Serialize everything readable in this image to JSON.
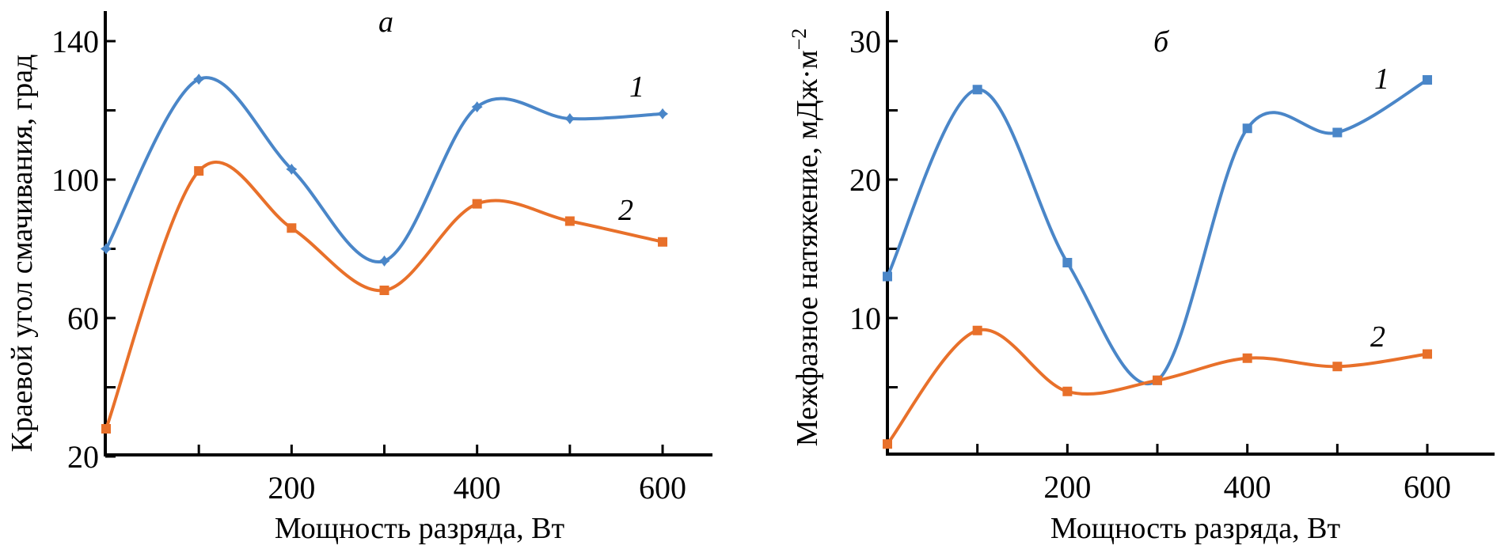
{
  "colors": {
    "series1": "#4a86c8",
    "series2": "#e8702a",
    "axis": "#000000"
  },
  "chart_data": [
    {
      "type": "line",
      "panel_label": "а",
      "title": "",
      "xlabel": "Мощность разряда, Вт",
      "ylabel": "Краевой угол смачивания, град",
      "xlim": [
        0,
        700
      ],
      "ylim": [
        20,
        150
      ],
      "x_ticks_major": [
        200,
        400,
        600
      ],
      "x_ticks_minor": [
        100,
        300,
        500
      ],
      "y_ticks_major": [
        20,
        60,
        100,
        140
      ],
      "y_ticks_minor": [
        40,
        80,
        120
      ],
      "x_tick_labels": [
        "200",
        "400",
        "600"
      ],
      "y_tick_labels": [
        "20",
        "60",
        "100",
        "140"
      ],
      "x": [
        0,
        100,
        200,
        300,
        400,
        500,
        600
      ],
      "grid": false,
      "smooth": true,
      "series": [
        {
          "name": "1",
          "marker": "diamond-star",
          "values": [
            80,
            129,
            103,
            76.5,
            121,
            117.6,
            119
          ]
        },
        {
          "name": "2",
          "marker": "square",
          "values": [
            28,
            102.5,
            86,
            68,
            93,
            88,
            82
          ]
        }
      ]
    },
    {
      "type": "line",
      "panel_label": "б",
      "title": "",
      "xlabel": "Мощность разряда, Вт",
      "ylabel": "Межфазное натяжение, мДж·м",
      "ylabel_superscript": "−2",
      "xlim": [
        0,
        700
      ],
      "ylim": [
        0,
        32
      ],
      "x_ticks_major": [
        200,
        400,
        600
      ],
      "x_ticks_minor": [
        100,
        300,
        500
      ],
      "y_ticks_major": [
        10,
        20,
        30
      ],
      "y_ticks_minor": [
        5,
        15,
        25
      ],
      "x_tick_labels": [
        "200",
        "400",
        "600"
      ],
      "y_tick_labels": [
        "10",
        "20",
        "30"
      ],
      "x": [
        0,
        100,
        200,
        300,
        400,
        500,
        600
      ],
      "grid": false,
      "smooth": true,
      "series": [
        {
          "name": "1",
          "marker": "square",
          "values": [
            13,
            26.5,
            14,
            5.5,
            23.7,
            23.4,
            27.2
          ]
        },
        {
          "name": "2",
          "marker": "square",
          "values": [
            0.9,
            9.1,
            4.7,
            5.5,
            7.1,
            6.5,
            7.4
          ]
        }
      ]
    }
  ]
}
